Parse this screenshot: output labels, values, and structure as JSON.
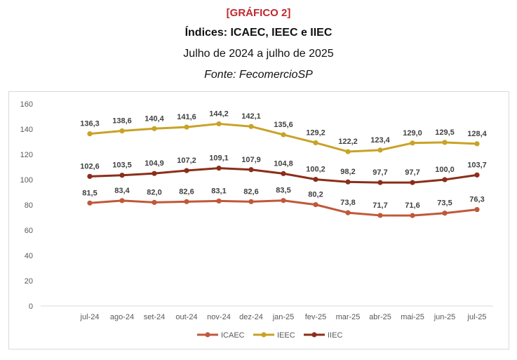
{
  "header": {
    "tag": "[GRÁFICO 2]",
    "title": "Índices: ICAEC, IEEC e IIEC",
    "subtitle": "Julho de 2024 a julho de 2025",
    "source": "Fonte: FecomercioSP"
  },
  "chart_data": {
    "type": "line",
    "title": "",
    "xlabel": "",
    "ylabel": "",
    "ylim": [
      0,
      160
    ],
    "yticks": [
      0,
      20,
      40,
      60,
      80,
      100,
      120,
      140,
      160
    ],
    "grid": false,
    "legend_position": "bottom",
    "categories": [
      "jul-24",
      "ago-24",
      "set-24",
      "out-24",
      "nov-24",
      "dez-24",
      "jan-25",
      "fev-25",
      "mar-25",
      "abr-25",
      "mai-25",
      "jun-25",
      "jul-25"
    ],
    "series": [
      {
        "name": "ICAEC",
        "color": "#c0583a",
        "values": [
          81.5,
          83.4,
          82.0,
          82.6,
          83.1,
          82.6,
          83.5,
          80.2,
          73.8,
          71.7,
          71.6,
          73.5,
          76.3
        ],
        "labels": [
          "81,5",
          "83,4",
          "82,0",
          "82,6",
          "83,1",
          "82,6",
          "83,5",
          "80,2",
          "73,8",
          "71,7",
          "71,6",
          "73,5",
          "76,3"
        ]
      },
      {
        "name": "IEEC",
        "color": "#c9a227",
        "values": [
          136.3,
          138.6,
          140.4,
          141.6,
          144.2,
          142.1,
          135.6,
          129.2,
          122.2,
          123.4,
          129.0,
          129.5,
          128.4
        ],
        "labels": [
          "136,3",
          "138,6",
          "140,4",
          "141,6",
          "144,2",
          "142,1",
          "135,6",
          "129,2",
          "122,2",
          "123,4",
          "129,0",
          "129,5",
          "128,4"
        ]
      },
      {
        "name": "IIEC",
        "color": "#8b2e1a",
        "values": [
          102.6,
          103.5,
          104.9,
          107.2,
          109.1,
          107.9,
          104.8,
          100.2,
          98.2,
          97.7,
          97.7,
          100.0,
          103.7
        ],
        "labels": [
          "102,6",
          "103,5",
          "104,9",
          "107,2",
          "109,1",
          "107,9",
          "104,8",
          "100,2",
          "98,2",
          "97,7",
          "97,7",
          "100,0",
          "103,7"
        ]
      }
    ]
  }
}
